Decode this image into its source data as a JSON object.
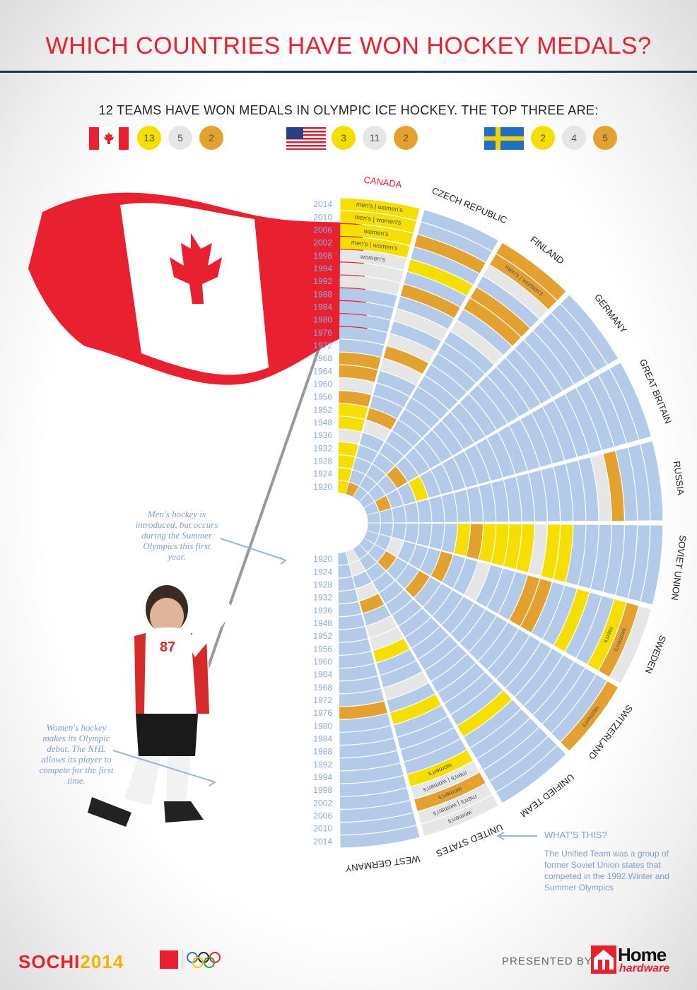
{
  "title": "WHICH COUNTRIES HAVE WON HOCKEY MEDALS?",
  "subtitle": "12 TEAMS HAVE WON MEDALS IN OLYMPIC ICE HOCKEY. THE TOP THREE ARE:",
  "top_three": [
    {
      "flag": "canada-flag",
      "gold": "13",
      "silver": "5",
      "bronze": "2"
    },
    {
      "flag": "usa-flag",
      "gold": "3",
      "silver": "11",
      "bronze": "2"
    },
    {
      "flag": "sweden-flag",
      "gold": "2",
      "silver": "4",
      "bronze": "5"
    }
  ],
  "colors": {
    "gold": "#f5df00",
    "silver": "#e6e6e6",
    "bronze": "#e3a12f",
    "empty": "#b3cbe8",
    "title": "#e8202f",
    "rule": "#1f3249",
    "year": "#8eaad4"
  },
  "annotations": {
    "mens": "Men's hockey is introduced, but occurs during the Summer Olympics this first year.",
    "womens": "Women's hockey makes its Olympic debut. The NHL allows its player to compete for the first time.",
    "whats_this_title": "WHAT'S THIS?",
    "whats_this_body": "The Unified Team was a group of former Soviet Union states that competed in the 1992 Winter and Summer Olympics"
  },
  "footer": {
    "sochi_a": "SOCHI",
    "sochi_b": "2014",
    "presented_by": "PRESENTED BY",
    "brand_top": "Home",
    "brand_bottom": "hardware"
  },
  "chart_data": {
    "type": "radial heatmap",
    "years": [
      "1920",
      "1924",
      "1928",
      "1932",
      "1936",
      "1948",
      "1952",
      "1956",
      "1960",
      "1964",
      "1968",
      "1972",
      "1976",
      "1980",
      "1984",
      "1988",
      "1992",
      "1994",
      "1998",
      "2002",
      "2006",
      "2010",
      "2014"
    ],
    "legend": {
      "G": "gold",
      "S": "silver",
      "B": "bronze"
    },
    "countries": [
      {
        "name": "WEST GERMANY",
        "medals": {
          "1976": "B"
        }
      },
      {
        "name": "UNITED STATES",
        "medals": {
          "1920": "S",
          "1924": "S",
          "1932": "S",
          "1936": "B",
          "1952": "S",
          "1956": "S",
          "1960": "G",
          "1972": "S",
          "1980": "G",
          "1998": "G",
          "2002": "S",
          "2006": "B",
          "2010": "S",
          "2014": "S"
        },
        "notes": {
          "1998": "women's",
          "2002": "men's | women's",
          "2006": "women's",
          "2010": "men's | women's",
          "2014": "women's"
        }
      },
      {
        "name": "UNIFIED TEAM",
        "medals": {
          "1992": "G"
        }
      },
      {
        "name": "SWITZERLAND",
        "medals": {
          "1928": "B",
          "1948": "B",
          "2014": "B"
        },
        "notes": {
          "2014": "women's"
        }
      },
      {
        "name": "SWEDEN",
        "medals": {
          "1928": "S",
          "1952": "B",
          "1964": "S",
          "1980": "B",
          "1984": "B",
          "1994": "G",
          "2006": "G",
          "2010": "B",
          "2014": "S"
        },
        "notes": {
          "2006": "men's",
          "2010": "women's"
        }
      },
      {
        "name": "SOVIET UNION",
        "medals": {
          "1956": "G",
          "1960": "B",
          "1964": "G",
          "1968": "G",
          "1972": "G",
          "1976": "G",
          "1980": "S",
          "1984": "G",
          "1988": "G"
        }
      },
      {
        "name": "RUSSIA",
        "medals": {
          "1998": "S",
          "2002": "B"
        }
      },
      {
        "name": "GREAT BRITAIN",
        "medals": {
          "1924": "B",
          "1936": "G"
        }
      },
      {
        "name": "GERMANY",
        "medals": {
          "1932": "B"
        }
      },
      {
        "name": "FINLAND",
        "medals": {
          "1988": "S",
          "1994": "B",
          "1998": "B",
          "2006": "S",
          "2010": "B",
          "2014": "B"
        },
        "notes": {
          "2010": "men's | women's"
        }
      },
      {
        "name": "CZECH REPUBLIC",
        "medals": {
          "1920": "B",
          "1948": "S",
          "1952": "B",
          "1968": "S",
          "1972": "B",
          "1976": "S",
          "1984": "S",
          "1992": "B",
          "1998": "G",
          "2006": "B"
        }
      },
      {
        "name": "CANADA",
        "title_color": "#e8202f",
        "medals": {
          "1920": "G",
          "1924": "G",
          "1928": "G",
          "1932": "G",
          "1936": "S",
          "1948": "G",
          "1952": "G",
          "1956": "B",
          "1960": "S",
          "1964": "B",
          "1968": "B",
          "1992": "S",
          "1994": "S",
          "1998": "S",
          "2002": "G",
          "2006": "G",
          "2010": "G",
          "2014": "G"
        },
        "notes": {
          "1998": "women's",
          "2002": "men's | women's",
          "2006": "women's",
          "2010": "men's | women's",
          "2014": "men's | women's"
        }
      }
    ]
  }
}
